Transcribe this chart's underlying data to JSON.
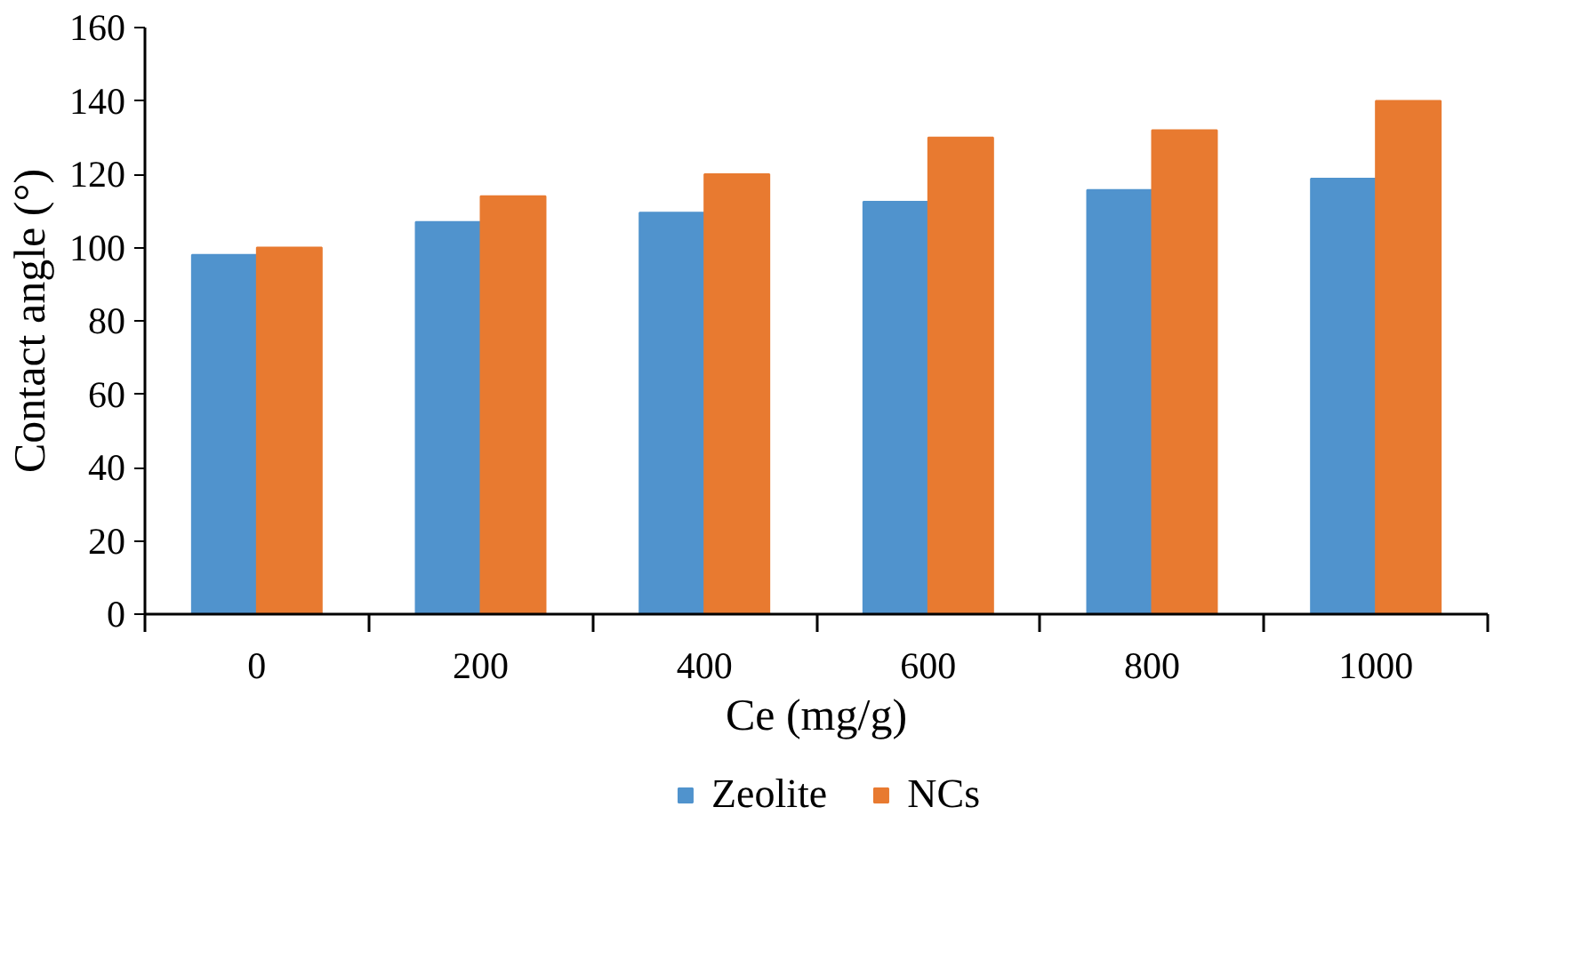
{
  "chart_data": {
    "type": "bar",
    "xlabel": "Ce (mg/g)",
    "ylabel": "Contact angle (°)",
    "categories": [
      "0",
      "200",
      "400",
      "600",
      "800",
      "1000"
    ],
    "series": [
      {
        "name": "Zeolite",
        "color": "#5093cd",
        "values": [
          98,
          107,
          109.5,
          112.5,
          115.7,
          118.8
        ]
      },
      {
        "name": "NCs",
        "color": "#e87a30",
        "values": [
          100,
          114,
          120,
          130,
          132,
          140
        ]
      }
    ],
    "ylim": [
      0,
      160
    ],
    "yticks": [
      0,
      20,
      40,
      60,
      80,
      100,
      120,
      140,
      160
    ],
    "grid": false,
    "legend": "bottom"
  }
}
